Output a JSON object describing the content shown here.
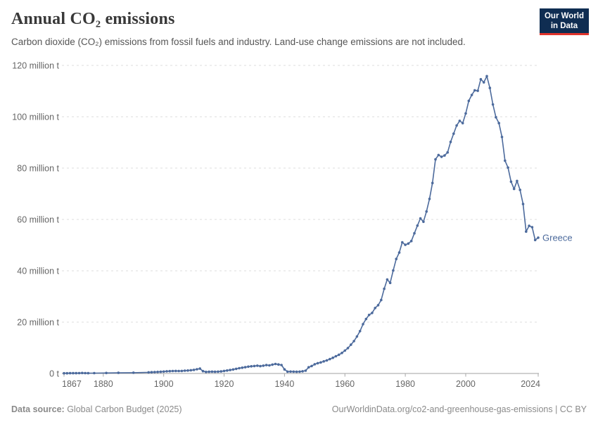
{
  "header": {
    "title": "Annual CO₂ emissions",
    "subtitle": "Carbon dioxide (CO₂) emissions from fossil fuels and industry. Land-use change emissions are not included."
  },
  "logo": {
    "line1": "Our World",
    "line2": "in Data",
    "bg_color": "#0F2D52",
    "accent_color": "#E0342C"
  },
  "chart_data": {
    "type": "line",
    "title": "Annual CO₂ emissions",
    "series_name": "Greece",
    "unit": "million t",
    "line_color": "#4C6A9C",
    "grid": true,
    "legend_position": "end-of-line-label",
    "ylim": [
      0,
      120
    ],
    "ytick_values": [
      0,
      20,
      40,
      60,
      80,
      100,
      120
    ],
    "ytick_labels": [
      "0 t",
      "20 million t",
      "40 million t",
      "60 million t",
      "80 million t",
      "100 million t",
      "120 million t"
    ],
    "xticks": [
      1867,
      1880,
      1900,
      1920,
      1940,
      1960,
      1980,
      2000,
      2024
    ],
    "xlim": [
      1867,
      2024
    ],
    "x": [
      1867,
      1868,
      1869,
      1870,
      1871,
      1872,
      1873,
      1874,
      1875,
      1877,
      1881,
      1885,
      1890,
      1895,
      1896,
      1897,
      1898,
      1899,
      1900,
      1901,
      1902,
      1903,
      1904,
      1905,
      1906,
      1907,
      1908,
      1909,
      1910,
      1911,
      1912,
      1913,
      1914,
      1915,
      1916,
      1917,
      1918,
      1919,
      1920,
      1921,
      1922,
      1923,
      1924,
      1925,
      1926,
      1927,
      1928,
      1929,
      1930,
      1931,
      1932,
      1933,
      1934,
      1935,
      1936,
      1937,
      1938,
      1939,
      1940,
      1941,
      1942,
      1943,
      1944,
      1945,
      1946,
      1947,
      1948,
      1949,
      1950,
      1951,
      1952,
      1953,
      1954,
      1955,
      1956,
      1957,
      1958,
      1959,
      1960,
      1961,
      1962,
      1963,
      1964,
      1965,
      1966,
      1967,
      1968,
      1969,
      1970,
      1971,
      1972,
      1973,
      1974,
      1975,
      1976,
      1977,
      1978,
      1979,
      1980,
      1981,
      1982,
      1983,
      1984,
      1985,
      1986,
      1987,
      1988,
      1989,
      1990,
      1991,
      1992,
      1993,
      1994,
      1995,
      1996,
      1997,
      1998,
      1999,
      2000,
      2001,
      2002,
      2003,
      2004,
      2005,
      2006,
      2007,
      2008,
      2009,
      2010,
      2011,
      2012,
      2013,
      2014,
      2015,
      2016,
      2017,
      2018,
      2019,
      2020,
      2021,
      2022,
      2023,
      2024
    ],
    "values": [
      0.08,
      0.09,
      0.1,
      0.1,
      0.12,
      0.14,
      0.18,
      0.14,
      0.12,
      0.15,
      0.2,
      0.25,
      0.3,
      0.45,
      0.5,
      0.55,
      0.6,
      0.65,
      0.75,
      0.85,
      0.9,
      0.95,
      1.0,
      0.95,
      1.0,
      1.1,
      1.15,
      1.25,
      1.4,
      1.65,
      1.9,
      0.9,
      0.6,
      0.65,
      0.7,
      0.65,
      0.7,
      0.8,
      1.0,
      1.15,
      1.35,
      1.55,
      1.8,
      2.05,
      2.25,
      2.45,
      2.65,
      2.8,
      2.9,
      3.05,
      2.85,
      3.05,
      3.25,
      3.15,
      3.45,
      3.7,
      3.5,
      3.3,
      1.6,
      0.7,
      0.75,
      0.7,
      0.65,
      0.7,
      0.85,
      1.1,
      2.4,
      2.9,
      3.6,
      4.0,
      4.3,
      4.7,
      5.1,
      5.6,
      6.1,
      6.7,
      7.3,
      8.0,
      8.9,
      9.9,
      11.2,
      12.6,
      14.4,
      16.5,
      19.2,
      21.2,
      22.8,
      23.6,
      25.5,
      26.6,
      28.6,
      33.0,
      36.6,
      35.3,
      40.1,
      44.6,
      47.1,
      51.1,
      50.1,
      50.6,
      51.6,
      54.6,
      57.6,
      60.4,
      59.1,
      63.1,
      68.0,
      74.2,
      83.4,
      85.1,
      84.4,
      84.9,
      86.1,
      90.2,
      93.4,
      96.6,
      98.4,
      97.5,
      101.3,
      106.2,
      108.5,
      110.3,
      110.1,
      114.6,
      113.4,
      115.8,
      111.2,
      104.8,
      99.8,
      97.5,
      92.1,
      82.9,
      80.2,
      74.7,
      71.9,
      75.0,
      71.5,
      66.0,
      55.3,
      57.5,
      57.0,
      52.0,
      52.9
    ]
  },
  "footer": {
    "source_label": "Data source:",
    "source_value": " Global Carbon Budget (2025)",
    "link": "OurWorldinData.org/co2-and-greenhouse-gas-emissions | CC BY"
  }
}
